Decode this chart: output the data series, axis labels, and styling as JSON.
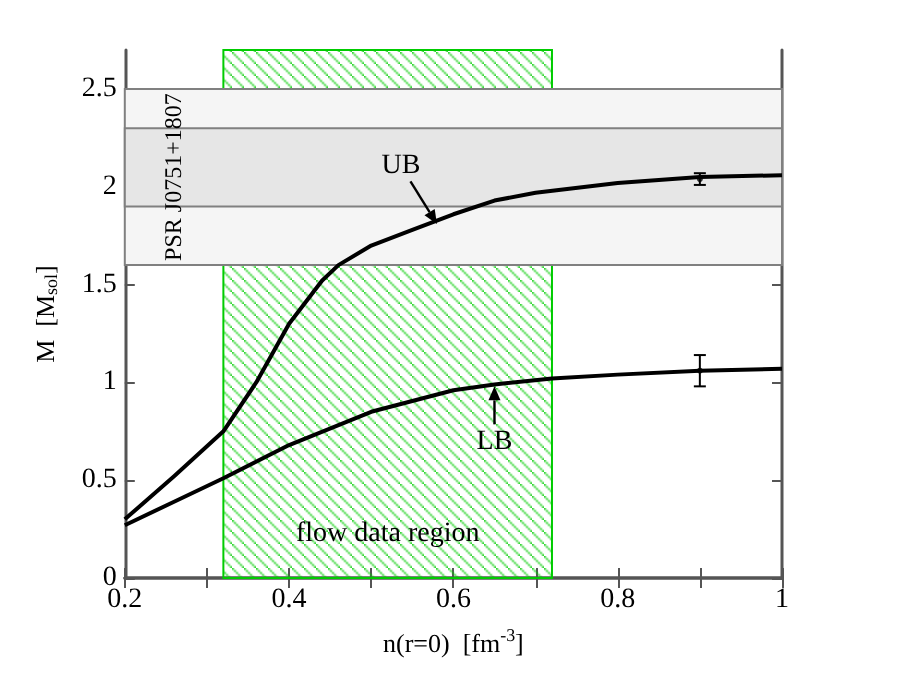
{
  "chart_data": {
    "type": "line",
    "xlabel": "n(r=0)  [fm$^{-3}$]",
    "ylabel": "M  [M$_{sol}$]",
    "xlim": [
      0.2,
      1.0
    ],
    "ylim": [
      0,
      2.7
    ],
    "xticks": [
      0.2,
      {
        "value": 0.3,
        "label": null
      },
      0.4,
      {
        "value": 0.5,
        "label": null
      },
      0.6,
      {
        "value": 0.7,
        "label": null
      },
      0.8,
      {
        "value": 0.9,
        "label": null
      },
      1
    ],
    "yticks": [
      0,
      0.5,
      1,
      1.5,
      2,
      2.5
    ],
    "grid": false,
    "marker": "none",
    "line_style": "solid",
    "series": [
      {
        "color": "#000000",
        "x": [
          0.2,
          0.26,
          0.32,
          0.36,
          0.4,
          0.44,
          0.46,
          0.5,
          0.55,
          0.6,
          0.65,
          0.7,
          0.8,
          0.9,
          1.0
        ],
        "values": [
          0.3,
          0.52,
          0.75,
          1.0,
          1.3,
          1.52,
          1.6,
          1.7,
          1.78,
          1.86,
          1.93,
          1.97,
          2.02,
          2.05,
          2.06
        ]
      },
      {
        "color": "#000000",
        "x": [
          0.2,
          0.26,
          0.32,
          0.4,
          0.5,
          0.6,
          0.65,
          0.72,
          0.8,
          0.9,
          1.0
        ],
        "values": [
          0.27,
          0.39,
          0.51,
          0.68,
          0.85,
          0.96,
          0.99,
          1.02,
          1.04,
          1.06,
          1.07
        ]
      },
      {
        "type": "scatter",
        "color": "#000000",
        "x": [
          0.9,
          0.9
        ],
        "values": [
          2.04,
          1.06
        ],
        "errors": [
          [
            2.01,
            2.07
          ],
          [
            0.98,
            1.14
          ]
        ]
      }
    ],
    "bands": [
      {
        "axis": "x",
        "from": 0.32,
        "to": 0.72,
        "label": "flow data region",
        "color": "#00cc00"
      },
      {
        "axis": "y",
        "from": 1.6,
        "to": 2.5,
        "label": "PSR J0751+1807",
        "color": "#f5f5f5"
      },
      {
        "axis": "y",
        "from": 1.9,
        "to": 2.3,
        "color": "#e6e6e6"
      }
    ],
    "annotations": [
      {
        "text": "UB",
        "x": 0.58,
        "y": 1.81
      },
      {
        "text": "LB",
        "x": 0.65,
        "y": 0.98
      }
    ]
  }
}
